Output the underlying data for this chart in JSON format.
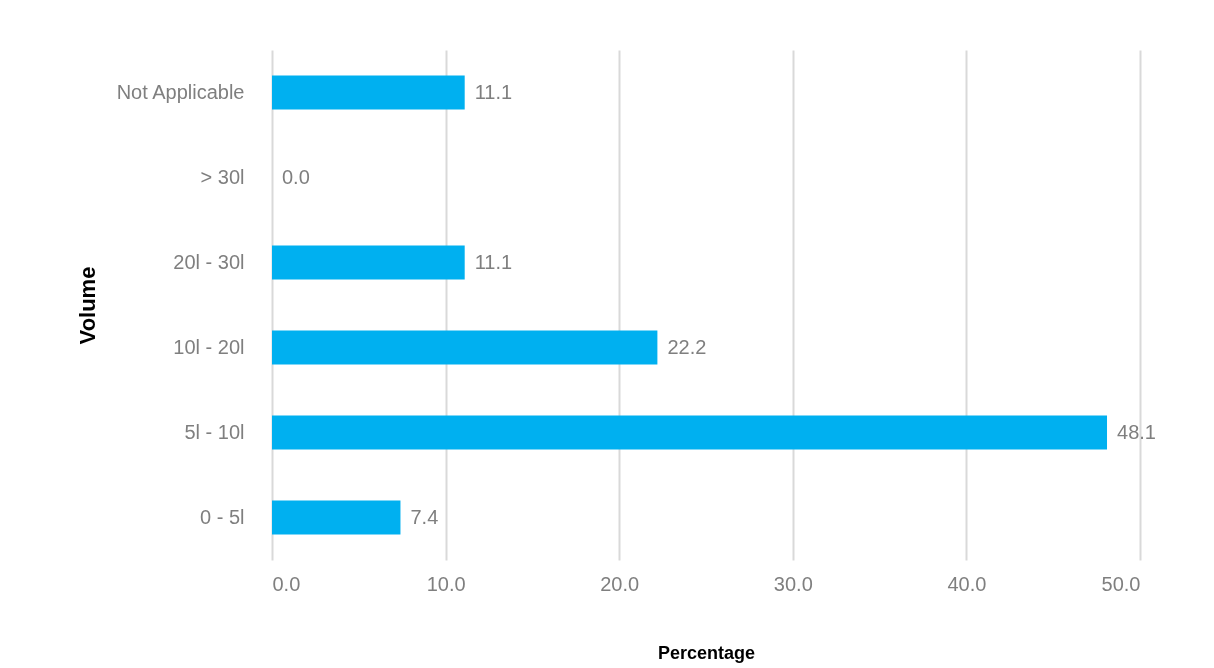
{
  "chart_data": {
    "type": "bar",
    "orientation": "horizontal",
    "categories": [
      "Not Applicable",
      "> 30l",
      "20l - 30l",
      "10l - 20l",
      "5l - 10l",
      "0 - 5l"
    ],
    "values": [
      11.1,
      0.0,
      11.1,
      22.2,
      48.1,
      7.4
    ],
    "color": "#00b0f0",
    "xlabel": "Percentage",
    "ylabel": "Volume",
    "xlim": [
      0,
      50
    ],
    "xticks": [
      {
        "value": 0,
        "label": "0.0"
      },
      {
        "value": 10,
        "label": "10.0"
      },
      {
        "value": 20,
        "label": "20.0"
      },
      {
        "value": 30,
        "label": "30.0"
      },
      {
        "value": 40,
        "label": "40.0"
      },
      {
        "value": 50,
        "label": "50.0"
      }
    ],
    "value_labels": [
      "11.1",
      "0.0",
      "11.1",
      "22.2",
      "48.1",
      "7.4"
    ],
    "grid": "x"
  }
}
